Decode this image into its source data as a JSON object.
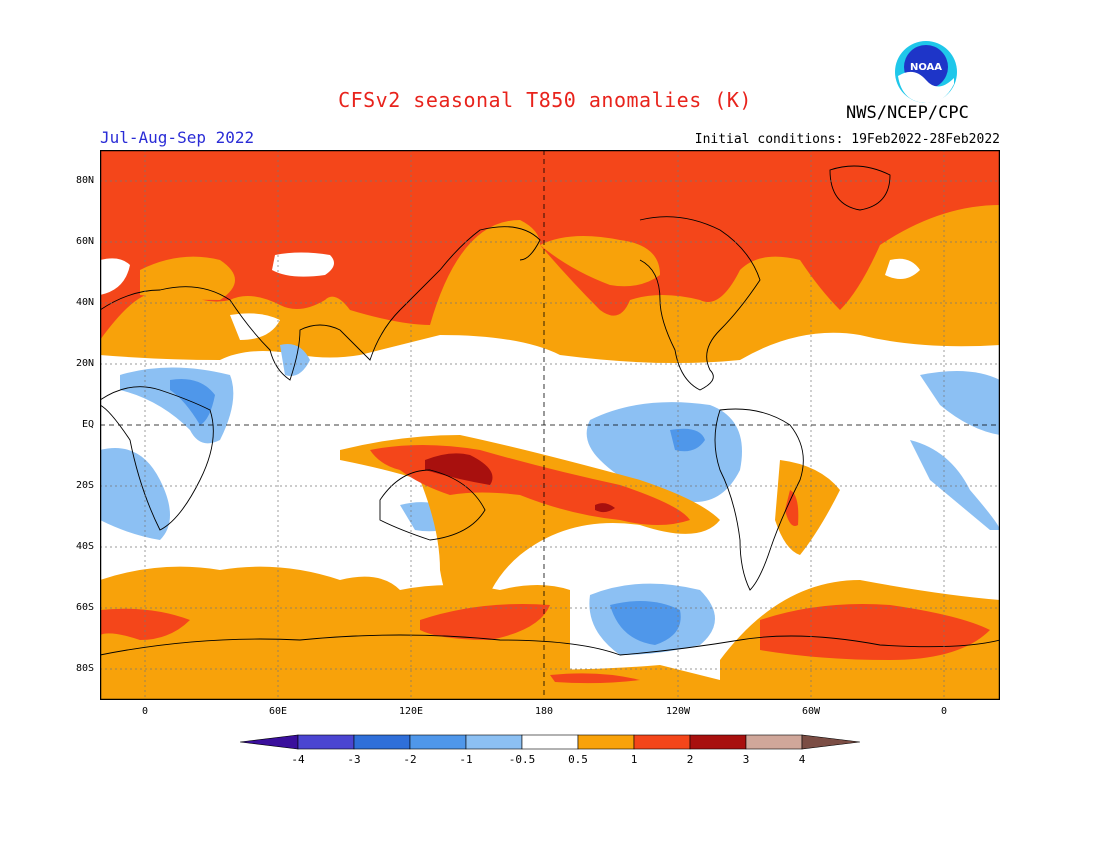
{
  "header": {
    "title": "CFSv2 seasonal T850 anomalies (K)",
    "agency": "NWS/NCEP/CPC",
    "logo_text": "NOAA",
    "season": "Jul-Aug-Sep 2022",
    "initial_conditions": "Initial conditions: 19Feb2022-28Feb2022"
  },
  "map": {
    "lat_labels": [
      "80N",
      "60N",
      "40N",
      "20N",
      "EQ",
      "20S",
      "40S",
      "60S",
      "80S"
    ],
    "lon_labels": [
      "0",
      "60E",
      "120E",
      "180",
      "120W",
      "60W",
      "0"
    ]
  },
  "colorbar": {
    "labels": [
      "-4",
      "-3",
      "-2",
      "-1",
      "-0.5",
      "0.5",
      "1",
      "2",
      "3",
      "4"
    ],
    "colors": [
      "#3a0f9c",
      "#4b45d1",
      "#2f6fd9",
      "#4f97ea",
      "#8cc0f3",
      "#ffffff",
      "#f8a20a",
      "#f4461a",
      "#a8100e",
      "#d0a79a",
      "#7b4d44"
    ]
  }
}
